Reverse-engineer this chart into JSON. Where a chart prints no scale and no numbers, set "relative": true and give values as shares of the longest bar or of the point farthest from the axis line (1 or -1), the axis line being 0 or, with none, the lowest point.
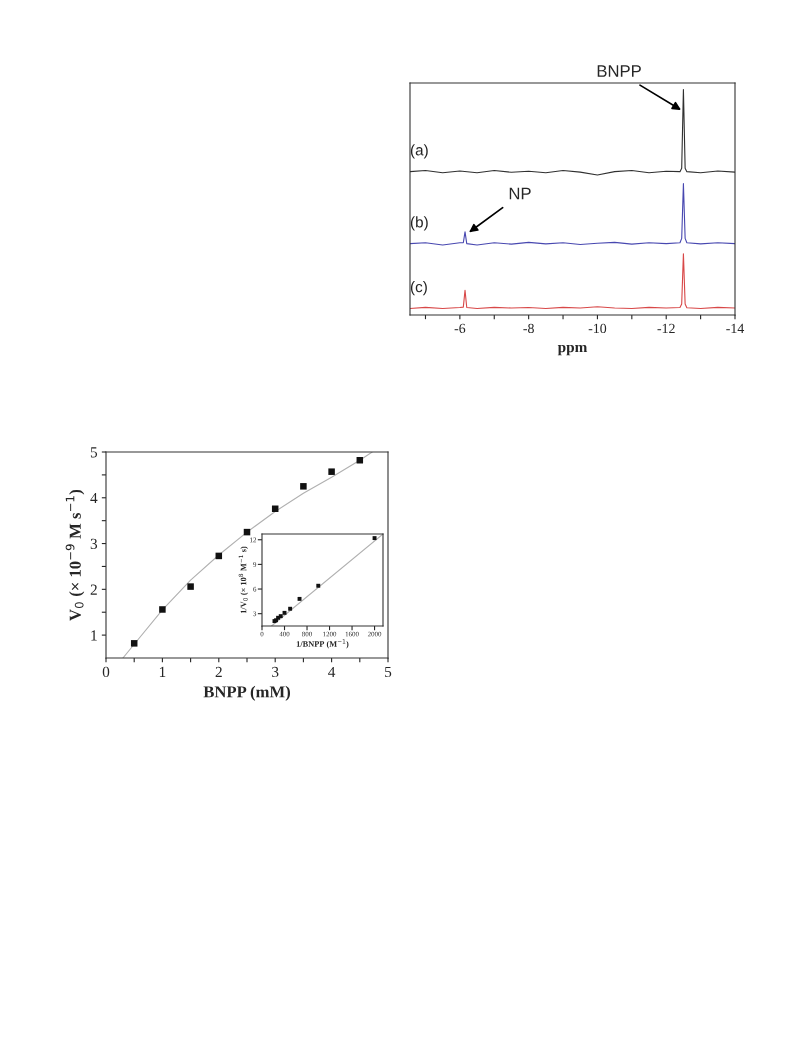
{
  "chart_data": [
    {
      "type": "line",
      "relative": true,
      "xlabel": "ppm",
      "xlim": [
        -4.55,
        -14
      ],
      "xticks": [
        {
          "value": -5,
          "label": null
        },
        -6,
        {
          "value": -7,
          "label": null
        },
        -8,
        {
          "value": -9,
          "label": null
        },
        -10,
        {
          "value": -11,
          "label": null
        },
        -12,
        {
          "value": -13,
          "label": null
        },
        -14
      ],
      "tick_labels": "x",
      "grid": false,
      "series": [
        {
          "name": "(a)",
          "color": "#303030",
          "x": [
            -4.55,
            -5,
            -5.5,
            -6,
            -6.5,
            -7,
            -7.5,
            -8,
            -8.5,
            -9,
            -9.5,
            -10,
            -10.5,
            -11,
            -11.5,
            -12,
            -12.4,
            -12.45,
            -12.5,
            -12.55,
            -12.6,
            -13,
            -13.5,
            -14
          ],
          "values": [
            0.625,
            0.63,
            0.62,
            0.628,
            0.62,
            0.63,
            0.622,
            0.627,
            0.62,
            0.63,
            0.623,
            0.61,
            0.625,
            0.63,
            0.62,
            0.627,
            0.625,
            0.64,
            1.0,
            0.64,
            0.625,
            0.62,
            0.628,
            0.623
          ]
        },
        {
          "name": "(b)",
          "color": "#4848b0",
          "x": [
            -4.55,
            -5,
            -5.5,
            -6,
            -6.1,
            -6.15,
            -6.2,
            -6.5,
            -7,
            -7.5,
            -8,
            -8.5,
            -9,
            -9.5,
            -10,
            -10.5,
            -11,
            -11.5,
            -12,
            -12.4,
            -12.45,
            -12.5,
            -12.55,
            -12.6,
            -13,
            -13.5,
            -14
          ],
          "values": [
            0.296,
            0.3,
            0.29,
            0.3,
            0.3,
            0.35,
            0.296,
            0.29,
            0.3,
            0.294,
            0.302,
            0.295,
            0.3,
            0.292,
            0.298,
            0.302,
            0.294,
            0.3,
            0.296,
            0.3,
            0.32,
            0.57,
            0.32,
            0.3,
            0.295,
            0.3,
            0.296
          ]
        },
        {
          "name": "(c)",
          "color": "#d84848",
          "x": [
            -4.55,
            -5,
            -5.5,
            -6,
            -6.1,
            -6.15,
            -6.2,
            -6.5,
            -7,
            -7.5,
            -8,
            -8.5,
            -9,
            -9.5,
            -10,
            -10.5,
            -11,
            -11.5,
            -12,
            -12.4,
            -12.45,
            -12.5,
            -12.55,
            -12.6,
            -13,
            -13.5,
            -14
          ],
          "values": [
            0.0,
            0.005,
            0.0,
            0.004,
            0.006,
            0.083,
            0.004,
            0.0,
            0.005,
            0.002,
            0.004,
            0.0,
            0.005,
            0.002,
            0.008,
            0.002,
            0.0,
            0.005,
            0.002,
            0.004,
            0.02,
            0.25,
            0.02,
            0.003,
            0.0,
            0.005,
            0.002
          ]
        }
      ],
      "annotations": [
        {
          "text": "BNPP",
          "x": -12.5,
          "y": 0.9
        },
        {
          "text": "NP",
          "x": -6.2,
          "y": 0.34
        }
      ]
    },
    {
      "type": "scatter",
      "xlabel": "BNPP (mM)",
      "ylabel": "V$_{0}$ (× 10$^{−9}$ M s$^{−1}$)",
      "xlim": [
        0,
        5
      ],
      "ylim": [
        0.5,
        5
      ],
      "xticks": [
        0,
        {
          "value": 0.5,
          "label": null
        },
        1,
        {
          "value": 1.5,
          "label": null
        },
        2,
        {
          "value": 2.5,
          "label": null
        },
        3,
        {
          "value": 3.5,
          "label": null
        },
        4,
        {
          "value": 4.5,
          "label": null
        },
        5
      ],
      "yticks": [
        1,
        {
          "value": 1.5,
          "label": null
        },
        2,
        {
          "value": 2.5,
          "label": null
        },
        3,
        {
          "value": 3.5,
          "label": null
        },
        4,
        {
          "value": 4.5,
          "label": null
        },
        5
      ],
      "marker": "square",
      "grid": false,
      "series": [
        {
          "color": "#111111",
          "x": [
            0.5,
            1,
            1.5,
            2,
            2.5,
            3,
            3.5,
            4,
            4.5
          ],
          "values": [
            0.82,
            1.56,
            2.06,
            2.73,
            3.25,
            3.76,
            4.25,
            4.57,
            4.82
          ]
        },
        {
          "type": "line",
          "marker": "none",
          "color": "#b0b0b0",
          "x": [
            0.3,
            0.5,
            1,
            1.5,
            2,
            2.5,
            3,
            3.5,
            4,
            4.5,
            4.72
          ],
          "values": [
            0.5,
            0.8,
            1.55,
            2.2,
            2.75,
            3.25,
            3.7,
            4.1,
            4.45,
            4.82,
            5.0
          ]
        }
      ]
    },
    {
      "type": "scatter",
      "xlabel": "1/BNPP (M$^{−1}$)",
      "ylabel": "1/V$_{0}$ (× 10$^{8}$ M$^{−1}$ s)",
      "xlim": [
        0,
        2150
      ],
      "ylim": [
        1.5,
        12.7
      ],
      "xticks": [
        0,
        400,
        800,
        1200,
        1600,
        2000
      ],
      "yticks": [
        3,
        6,
        9,
        12
      ],
      "marker": "square",
      "grid": false,
      "series": [
        {
          "color": "#111111",
          "x": [
            2000,
            1000,
            667,
            500,
            400,
            333,
            286,
            250,
            222
          ],
          "values": [
            12.2,
            6.4,
            4.8,
            3.6,
            3.1,
            2.7,
            2.5,
            2.2,
            2.1
          ]
        },
        {
          "type": "line",
          "marker": "none",
          "color": "#b0b0b0",
          "x": [
            170,
            2150
          ],
          "values": [
            1.5,
            12.7
          ]
        }
      ]
    }
  ]
}
